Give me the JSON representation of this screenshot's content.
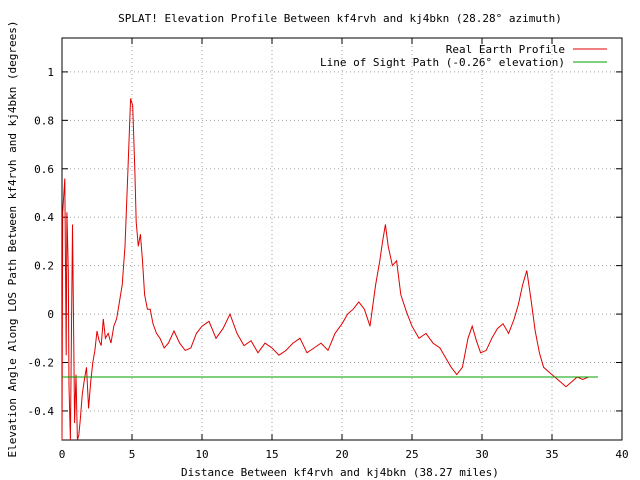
{
  "chart_data": {
    "type": "line",
    "title": "SPLAT! Elevation Profile Between kf4rvh and kj4bkn (28.28° azimuth)",
    "xlabel": "Distance Between kf4rvh and kj4bkn (38.27 miles)",
    "ylabel": "Elevation Angle Along LOS Path Between kf4rvh and kj4bkn (degrees)",
    "xlim": [
      0,
      40
    ],
    "ylim": [
      -0.52,
      1.14
    ],
    "x_ticks": [
      0,
      5,
      10,
      15,
      20,
      25,
      30,
      35,
      40
    ],
    "x_tick_labels": [
      "0",
      "5",
      "10",
      "15",
      "20",
      "25",
      "30",
      "35",
      "40"
    ],
    "y_ticks": [
      -0.4,
      -0.2,
      0,
      0.2,
      0.4,
      0.6,
      0.8,
      1
    ],
    "y_tick_labels": [
      "-0.4",
      "-0.2",
      "0",
      "0.2",
      "0.4",
      "0.6",
      "0.8",
      "1"
    ],
    "grid": true,
    "legend_position": "top-right",
    "series": [
      {
        "name": "Real Earth Profile",
        "color": "#e00000",
        "x": [
          0,
          0.05,
          0.2,
          0.3,
          0.35,
          0.45,
          0.5,
          0.6,
          0.75,
          0.9,
          1.0,
          1.1,
          1.2,
          1.3,
          1.45,
          1.6,
          1.75,
          1.9,
          2.05,
          2.2,
          2.35,
          2.5,
          2.65,
          2.8,
          2.95,
          3.1,
          3.3,
          3.5,
          3.7,
          3.9,
          4.1,
          4.3,
          4.5,
          4.7,
          4.9,
          5.05,
          5.2,
          5.3,
          5.45,
          5.6,
          5.75,
          5.9,
          6.1,
          6.3,
          6.5,
          6.75,
          7.0,
          7.3,
          7.6,
          8.0,
          8.4,
          8.8,
          9.2,
          9.6,
          10.0,
          10.5,
          11.0,
          11.5,
          12.0,
          12.5,
          13.0,
          13.5,
          14.0,
          14.5,
          15.0,
          15.5,
          16.0,
          16.5,
          17.0,
          17.5,
          18.0,
          18.5,
          19.0,
          19.5,
          20.0,
          20.4,
          20.8,
          21.2,
          21.6,
          22.0,
          22.4,
          22.7,
          22.9,
          23.1,
          23.3,
          23.6,
          23.9,
          24.2,
          24.6,
          25.0,
          25.5,
          26.0,
          26.5,
          27.0,
          27.4,
          27.8,
          28.2,
          28.6,
          29.0,
          29.3,
          29.6,
          29.9,
          30.3,
          30.7,
          31.1,
          31.5,
          31.9,
          32.3,
          32.6,
          32.9,
          33.2,
          33.5,
          33.8,
          34.1,
          34.4,
          34.8,
          35.2,
          35.6,
          36.0,
          36.4,
          36.8,
          37.2,
          37.6,
          38.0,
          38.27
        ],
        "values": [
          -0.52,
          0.42,
          0.56,
          -0.17,
          0.42,
          0.18,
          -0.3,
          -0.52,
          0.37,
          -0.45,
          -0.25,
          -0.52,
          -0.5,
          -0.44,
          -0.33,
          -0.27,
          -0.22,
          -0.39,
          -0.28,
          -0.2,
          -0.15,
          -0.07,
          -0.11,
          -0.13,
          -0.02,
          -0.1,
          -0.08,
          -0.12,
          -0.05,
          -0.02,
          0.05,
          0.12,
          0.28,
          0.58,
          0.89,
          0.86,
          0.6,
          0.38,
          0.28,
          0.33,
          0.22,
          0.08,
          0.02,
          0.02,
          -0.04,
          -0.08,
          -0.1,
          -0.14,
          -0.12,
          -0.07,
          -0.12,
          -0.15,
          -0.14,
          -0.08,
          -0.05,
          -0.03,
          -0.1,
          -0.06,
          0.0,
          -0.08,
          -0.13,
          -0.11,
          -0.16,
          -0.12,
          -0.14,
          -0.17,
          -0.15,
          -0.12,
          -0.1,
          -0.16,
          -0.14,
          -0.12,
          -0.15,
          -0.08,
          -0.04,
          0.0,
          0.02,
          0.05,
          0.02,
          -0.05,
          0.12,
          0.22,
          0.3,
          0.37,
          0.28,
          0.2,
          0.22,
          0.08,
          0.01,
          -0.05,
          -0.1,
          -0.08,
          -0.12,
          -0.14,
          -0.18,
          -0.22,
          -0.25,
          -0.22,
          -0.1,
          -0.05,
          -0.11,
          -0.16,
          -0.15,
          -0.1,
          -0.06,
          -0.04,
          -0.08,
          -0.02,
          0.04,
          0.12,
          0.18,
          0.06,
          -0.07,
          -0.16,
          -0.22,
          -0.24,
          -0.26,
          -0.28,
          -0.3,
          -0.28,
          -0.26,
          -0.27,
          -0.26,
          -0.26,
          -0.26
        ]
      },
      {
        "name": "Line of Sight Path (-0.26° elevation)",
        "color": "#00a000",
        "x": [
          0,
          38.27
        ],
        "values": [
          -0.26,
          -0.26
        ]
      }
    ]
  }
}
